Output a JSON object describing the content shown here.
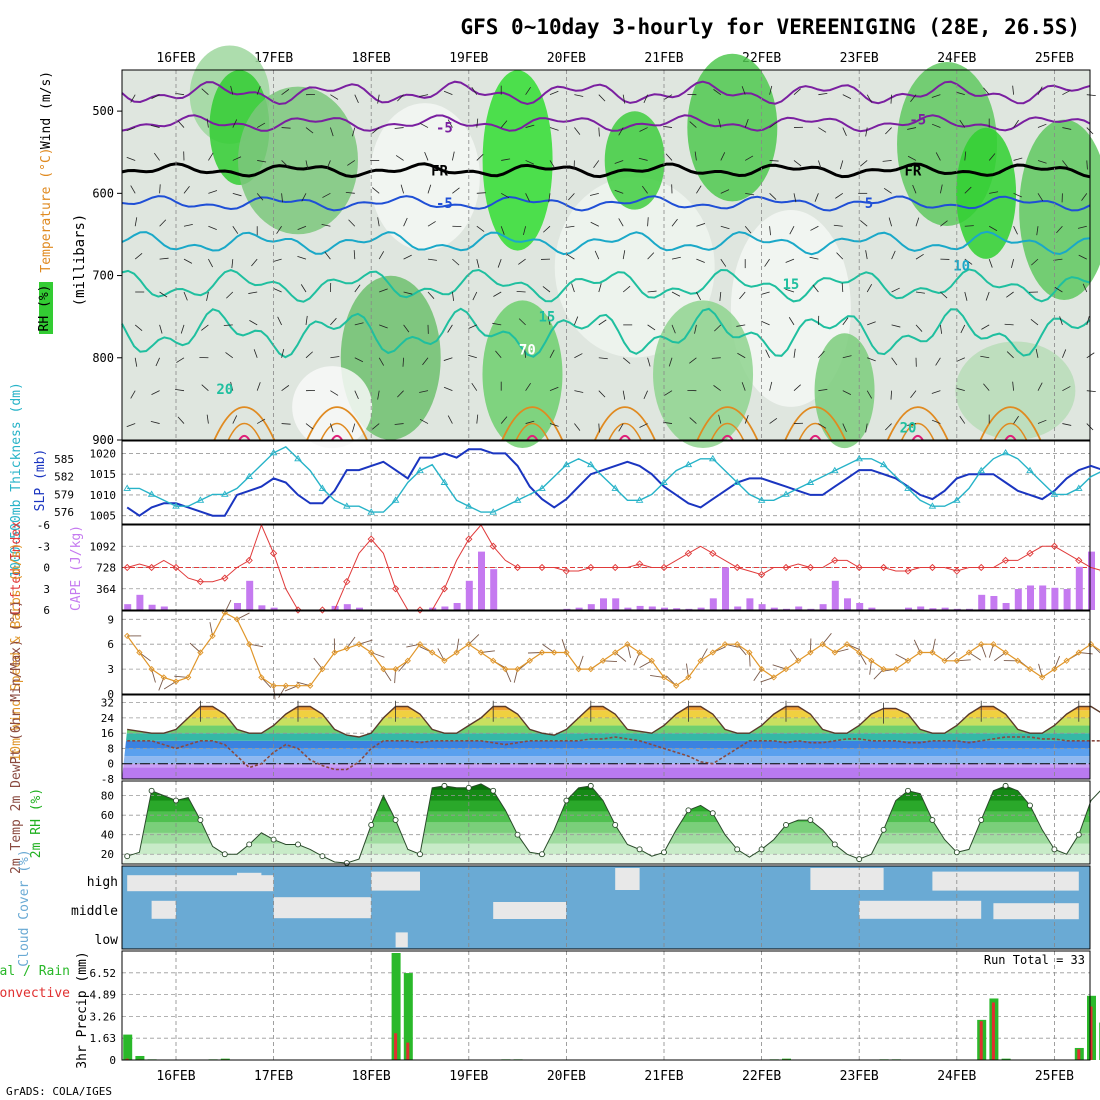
{
  "page": {
    "title": "GFS 0~10day 3-hourly for VEREENIGING (28E, 26.5S)",
    "credit": "GrADS: COLA/IGES"
  },
  "colors": {
    "wind_purple": "#7a1fa0",
    "temp_blue": "#1f4fd6",
    "temp_cyan": "#1aa8c8",
    "temp_teal": "#1fbf9f",
    "temp_orange": "#e08a20",
    "temp_magenta": "#e0207a",
    "rh_dark": "#4a6a50",
    "slp": "#1a35c0",
    "thickness": "#27b3c8",
    "lifted": "#e03a3a",
    "cape": "#c57af0",
    "wind10": "#e0962a",
    "tmax": "#f0a030",
    "dew": "#8a4a40",
    "rh2m": "#20b020",
    "cloud": "#6aaad4",
    "cloud_gap": "#e8e8e8",
    "precip_total": "#2ab82a",
    "precip_conv": "#e03030"
  },
  "chart_data": [
    {
      "type": "heatmap",
      "title": "Vertical cross-section",
      "x_labels": [
        "16FEB",
        "17FEB",
        "18FEB",
        "19FEB",
        "20FEB",
        "21FEB",
        "22FEB",
        "23FEB",
        "24FEB",
        "25FEB"
      ],
      "ylabel_parts": [
        "RH (%)",
        "Temperature (°C)",
        "Wind (m/s)",
        "(millibars)"
      ],
      "y_ticks": [
        500,
        600,
        700,
        800,
        900
      ],
      "ylim": [
        900,
        450
      ],
      "contour_labels": [
        {
          "text": "-5",
          "series": "purple",
          "day": 2.75,
          "p": 520
        },
        {
          "text": "-5",
          "series": "purple",
          "day": 7.6,
          "p": 510
        },
        {
          "text": "FR",
          "series": "black",
          "day": 2.7,
          "p": 572
        },
        {
          "text": "FR",
          "series": "black",
          "day": 7.55,
          "p": 572
        },
        {
          "text": "-5",
          "series": "blue",
          "day": 2.75,
          "p": 612
        },
        {
          "text": "5",
          "series": "blue",
          "day": 7.1,
          "p": 612
        },
        {
          "text": "10",
          "series": "cyan",
          "day": 8.05,
          "p": 688
        },
        {
          "text": "15",
          "series": "teal",
          "day": 6.3,
          "p": 710
        },
        {
          "text": "15",
          "series": "teal",
          "day": 3.8,
          "p": 750
        },
        {
          "text": "20",
          "series": "teal",
          "day": 0.5,
          "p": 838
        },
        {
          "text": "20",
          "series": "teal",
          "day": 7.5,
          "p": 885
        },
        {
          "text": "70",
          "series": "rh",
          "day": 3.6,
          "p": 790
        }
      ],
      "lines": [
        {
          "key": "purple",
          "color": "wind_purple",
          "base": 478,
          "amp": 14
        },
        {
          "key": "purple2",
          "color": "wind_purple",
          "base": 515,
          "amp": 10
        },
        {
          "key": "black",
          "color": "rh_dark",
          "base": 572,
          "amp": 8
        },
        {
          "key": "blue",
          "color": "temp_blue",
          "base": 612,
          "amp": 9
        },
        {
          "key": "cyan",
          "color": "temp_cyan",
          "base": 660,
          "amp": 14
        },
        {
          "key": "teal",
          "color": "temp_teal",
          "base": 712,
          "amp": 20
        },
        {
          "key": "teal2",
          "color": "temp_teal",
          "base": 770,
          "amp": 30
        }
      ]
    },
    {
      "type": "line",
      "title": "SLP and 1000-500mb thickness",
      "ylabel_left": "1000-500mb Thickness (dm)",
      "ylabel_right": "SLP (mb)",
      "y_ticks_left": [
        576,
        579,
        582,
        585
      ],
      "y_ticks_right": [
        1005,
        1010,
        1015,
        1020
      ],
      "ylim_right": [
        1003,
        1023
      ],
      "series": [
        {
          "name": "SLP (mb)",
          "color": "slp",
          "values": [
            1007,
            1005,
            1007,
            1008,
            1008,
            1007,
            1006,
            1005,
            1005,
            1010,
            1011,
            1012,
            1014,
            1013,
            1010,
            1008,
            1008,
            1011,
            1016,
            1016,
            1017,
            1018,
            1016,
            1014,
            1019,
            1019,
            1020,
            1019,
            1021,
            1021,
            1020,
            1020,
            1017,
            1012,
            1009,
            1007,
            1009,
            1012,
            1015,
            1016,
            1017,
            1018,
            1017,
            1015,
            1012,
            1010,
            1008,
            1007,
            1009,
            1011,
            1013,
            1014,
            1014,
            1013,
            1012,
            1011,
            1010,
            1010,
            1012,
            1014,
            1016,
            1016,
            1015,
            1014,
            1012,
            1010,
            1009,
            1011,
            1014,
            1015,
            1015,
            1015,
            1013,
            1011,
            1010,
            1009,
            1011,
            1014,
            1016,
            1017,
            1016,
            1014
          ]
        },
        {
          "name": "Thickness (dm)",
          "color": "thickness",
          "values": [
            580,
            580,
            579,
            578,
            577,
            577,
            578,
            579,
            579,
            580,
            582,
            584,
            586,
            587,
            585,
            583,
            580,
            578,
            577,
            577,
            576,
            576,
            578,
            581,
            583,
            584,
            581,
            578,
            577,
            576,
            576,
            577,
            578,
            579,
            580,
            582,
            584,
            585,
            584,
            582,
            580,
            578,
            578,
            579,
            581,
            583,
            584,
            585,
            585,
            583,
            581,
            579,
            578,
            578,
            579,
            580,
            581,
            582,
            583,
            584,
            585,
            585,
            584,
            582,
            580,
            578,
            577,
            577,
            578,
            580,
            583,
            585,
            586,
            585,
            583,
            581,
            579,
            579,
            580,
            582,
            583,
            582
          ]
        }
      ]
    },
    {
      "type": "bar",
      "title": "CAPE and Lifted Index",
      "ylabel_left": "Lifted Index",
      "ylabel_right": "CAPE (J/kg)",
      "y_ticks_left": [
        "-6",
        "-3",
        "0",
        "3",
        "6"
      ],
      "y_ticks_right": [
        364,
        728,
        1092
      ],
      "ylim_cape": [
        0,
        1456
      ],
      "ylim_li": [
        -6,
        6
      ],
      "cape_values": [
        100,
        260,
        90,
        60,
        0,
        0,
        0,
        0,
        0,
        120,
        500,
        80,
        40,
        0,
        0,
        0,
        0,
        70,
        100,
        40,
        0,
        0,
        0,
        0,
        0,
        40,
        60,
        120,
        500,
        1000,
        700,
        0,
        0,
        0,
        0,
        0,
        20,
        40,
        100,
        200,
        200,
        40,
        70,
        60,
        40,
        30,
        20,
        40,
        200,
        730,
        60,
        200,
        100,
        40,
        20,
        60,
        20,
        100,
        500,
        200,
        120,
        40,
        0,
        0,
        40,
        60,
        30,
        40,
        20,
        20,
        260,
        240,
        120,
        360,
        420,
        420,
        380,
        360,
        740,
        1000,
        740,
        180,
        300
      ],
      "li_values": [
        0,
        -0.5,
        0,
        -1,
        0,
        1.5,
        2,
        2,
        1.5,
        0,
        -1,
        -6,
        -2,
        3,
        6,
        6,
        6,
        6,
        2,
        -2,
        -4,
        -2,
        3,
        6,
        6,
        6,
        3,
        -1,
        -4,
        -6,
        -3,
        -1,
        0,
        0,
        0,
        0,
        0.5,
        0.5,
        0,
        0,
        0,
        0,
        -0.5,
        0,
        0,
        -1,
        -2,
        -3,
        -2,
        -1,
        0,
        0.5,
        1,
        0,
        0,
        -0.5,
        0,
        0,
        -1,
        -1,
        0,
        0,
        0,
        0.5,
        0.5,
        0,
        0,
        0,
        0.5,
        0,
        0,
        0,
        -1,
        -1,
        -2,
        -3,
        -3,
        -2,
        -1,
        0,
        0.5,
        0,
        0.5
      ]
    },
    {
      "type": "line",
      "title": "10m Wind Speed & Barbs",
      "ylabel": "10m Wind Speed & Barbs (m/s)",
      "y_ticks": [
        0,
        3,
        6,
        9
      ],
      "ylim": [
        0,
        10
      ],
      "series": [
        {
          "name": "10m Wind Speed (m/s)",
          "color": "wind10",
          "values": [
            7,
            5,
            3,
            2,
            1.5,
            2,
            5,
            7,
            9.8,
            9,
            6,
            2,
            1,
            1,
            1,
            1,
            3,
            5,
            5.5,
            6,
            5,
            3,
            3,
            4,
            6,
            5,
            4,
            5,
            6,
            5,
            4,
            3,
            3,
            4,
            5,
            5,
            5,
            3,
            3,
            4,
            5,
            6,
            5,
            4,
            2,
            1,
            2,
            4,
            5,
            6,
            6,
            5,
            3,
            2,
            3,
            4,
            5,
            6,
            5,
            6,
            5,
            4,
            3,
            3,
            4,
            5,
            5,
            4,
            4,
            5,
            6,
            6,
            5,
            4,
            3,
            2,
            3,
            4,
            5,
            6,
            5,
            4,
            3
          ]
        }
      ]
    },
    {
      "type": "area",
      "title": "2m Temp, 2m DewPt (6hr Min/Max)",
      "ylabel": "2m Temp 2m DewPt (6hr Min/Max) (°C)",
      "y_ticks": [
        -8,
        0,
        8,
        16,
        24,
        32
      ],
      "ylim": [
        -8,
        36
      ],
      "series": [
        {
          "name": "2m Temp (°C)",
          "color": "tmax",
          "values": [
            18,
            17,
            16,
            16,
            18,
            24,
            30,
            30,
            26,
            18,
            16,
            16,
            20,
            26,
            30,
            30,
            26,
            18,
            15,
            14,
            16,
            24,
            30,
            30,
            26,
            18,
            16,
            16,
            20,
            24,
            30,
            30,
            26,
            18,
            16,
            15,
            18,
            24,
            30,
            30,
            26,
            18,
            17,
            16,
            20,
            26,
            30,
            30,
            26,
            18,
            16,
            16,
            20,
            26,
            30,
            30,
            26,
            18,
            16,
            16,
            20,
            26,
            29,
            29,
            26,
            18,
            16,
            16,
            20,
            26,
            30,
            30,
            26,
            18,
            16,
            16,
            20,
            26,
            30,
            30,
            26,
            18,
            20
          ]
        },
        {
          "name": "2m DewPt (°C)",
          "color": "dew",
          "values": [
            12,
            12,
            12,
            10,
            8,
            10,
            12,
            12,
            10,
            4,
            -2,
            0,
            6,
            10,
            8,
            2,
            -1,
            -3,
            -3,
            1,
            8,
            12,
            12,
            12,
            11,
            12,
            12,
            12,
            12,
            12,
            11,
            10,
            11,
            12,
            12,
            12,
            12,
            12,
            13,
            13,
            14,
            13,
            12,
            10,
            8,
            6,
            4,
            1,
            0,
            4,
            8,
            12,
            12,
            12,
            11,
            12,
            11,
            11,
            12,
            13,
            13,
            12,
            12,
            12,
            11,
            11,
            12,
            12,
            12,
            11,
            12,
            13,
            14,
            14,
            14,
            13,
            13,
            12,
            12,
            12,
            12,
            12,
            12
          ]
        }
      ]
    },
    {
      "type": "area",
      "title": "2m RH",
      "ylabel": "2m RH (%)",
      "y_ticks": [
        20,
        40,
        60,
        80
      ],
      "ylim": [
        10,
        95
      ],
      "series": [
        {
          "name": "2m RH (%)",
          "color": "rh2m",
          "values": [
            18,
            22,
            85,
            80,
            75,
            78,
            55,
            28,
            20,
            20,
            30,
            42,
            35,
            30,
            30,
            25,
            18,
            12,
            11,
            15,
            50,
            80,
            55,
            25,
            20,
            88,
            90,
            88,
            88,
            92,
            85,
            65,
            40,
            22,
            20,
            45,
            75,
            88,
            90,
            75,
            50,
            30,
            25,
            18,
            22,
            45,
            65,
            70,
            62,
            40,
            25,
            17,
            25,
            35,
            50,
            55,
            55,
            45,
            30,
            20,
            15,
            20,
            45,
            75,
            85,
            82,
            55,
            35,
            22,
            25,
            55,
            85,
            90,
            85,
            70,
            45,
            25,
            20,
            40,
            75,
            88,
            80,
            65
          ]
        }
      ]
    },
    {
      "type": "heatmap",
      "title": "Cloud Cover",
      "ylabel": "Cloud Cover (%)",
      "levels": [
        "high",
        "middle",
        "low"
      ]
    },
    {
      "type": "bar",
      "title": "3hr Precip",
      "ylabel": "3hr Precip (mm)",
      "legend": [
        "Total / Rain",
        "Convective"
      ],
      "run_total_label": "Run Total = 33",
      "y_ticks": [
        "0",
        "1.63",
        "3.26",
        "4.89",
        "6.52"
      ],
      "ylim": [
        0,
        8.15
      ],
      "series": [
        {
          "name": "Total / Rain",
          "color": "precip_total",
          "values": [
            1.9,
            0.3,
            0.05,
            0,
            0,
            0,
            0,
            0.05,
            0.1,
            0,
            0,
            0,
            0,
            0,
            0,
            0,
            0,
            0,
            0,
            0,
            0,
            0,
            8,
            6.5,
            0,
            0,
            0,
            0,
            0,
            0,
            0,
            0.05,
            0.05,
            0,
            0,
            0,
            0,
            0,
            0,
            0,
            0,
            0,
            0,
            0,
            0,
            0,
            0,
            0,
            0,
            0,
            0,
            0,
            0,
            0.05,
            0.1,
            0,
            0,
            0,
            0,
            0,
            0,
            0,
            0.05,
            0.05,
            0,
            0,
            0,
            0,
            0,
            0,
            3.0,
            4.6,
            0.1,
            0,
            0,
            0,
            0,
            0,
            0.9,
            4.8,
            2.8,
            0,
            0
          ]
        },
        {
          "name": "Convective",
          "color": "precip_conv",
          "values": [
            0.1,
            0.05,
            0,
            0,
            0,
            0,
            0,
            0,
            0.05,
            0,
            0,
            0,
            0,
            0,
            0,
            0,
            0,
            0,
            0,
            0,
            0,
            0,
            2.0,
            1.3,
            0,
            0,
            0,
            0,
            0,
            0,
            0,
            0,
            0,
            0,
            0,
            0,
            0,
            0,
            0,
            0,
            0,
            0,
            0,
            0,
            0,
            0,
            0,
            0,
            0,
            0,
            0,
            0,
            0,
            0,
            0.05,
            0,
            0,
            0,
            0,
            0,
            0,
            0,
            0,
            0,
            0,
            0,
            0,
            0,
            0,
            0,
            2.9,
            4.3,
            0,
            0,
            0,
            0,
            0,
            0,
            0.8,
            4.0,
            1.0,
            0,
            0
          ]
        }
      ]
    }
  ]
}
